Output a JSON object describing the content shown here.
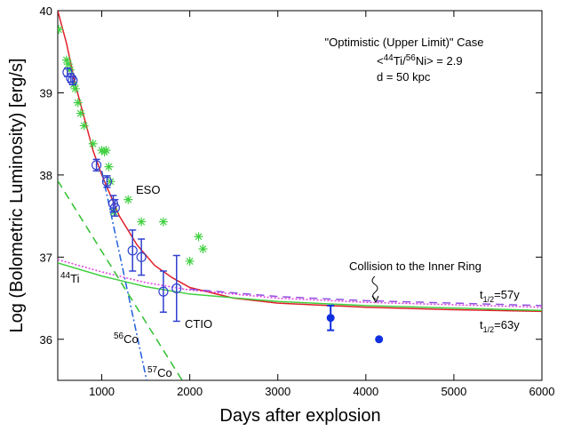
{
  "chart_data": {
    "type": "line",
    "xlabel": "Days after explosion",
    "ylabel": "Log (Bolometric Luminosity) [erg/s]",
    "xlim": [
      500,
      6000
    ],
    "ylim": [
      35.5,
      40
    ],
    "xticks": [
      1000,
      2000,
      3000,
      4000,
      5000,
      6000
    ],
    "yticks": [
      36,
      37,
      38,
      39,
      40
    ],
    "case": {
      "title": "\"Optimistic (Upper Limit)\" Case",
      "ratio": {
        "open": "<",
        "iso1": "44",
        "el1": "Ti/",
        "iso2": "56",
        "el2": "Ni> = 2.9"
      },
      "distance": "d = 50 kpc"
    },
    "annotations": {
      "eso": "ESO",
      "ctio": "CTIO",
      "collision": "Collision to the Inner Ring",
      "ti": {
        "iso": "44",
        "el": "Ti"
      },
      "co56": {
        "iso": "56",
        "el": "Co"
      },
      "co57": {
        "iso": "57",
        "el": "Co"
      },
      "t57": {
        "base": "t",
        "sub": "1/2",
        "text": "=57y"
      },
      "t63": {
        "base": "t",
        "sub": "1/2",
        "text": "=63y"
      }
    },
    "series": [
      {
        "marker": "line",
        "dash": "solid",
        "color": "#e0202a",
        "x": [
          500,
          600,
          700,
          800,
          900,
          1000,
          1200,
          1400,
          1600,
          1800,
          2000,
          2500,
          3000,
          4000,
          5000,
          6000
        ],
        "values": [
          40,
          39.6,
          39.1,
          38.7,
          38.3,
          38.0,
          37.5,
          37.15,
          36.9,
          36.75,
          36.63,
          36.5,
          36.44,
          36.39,
          36.36,
          36.34
        ]
      },
      {
        "marker": "line",
        "dash": "solid",
        "color": "#40d040",
        "x": [
          500,
          1000,
          1500,
          2000,
          3000,
          4000,
          5000,
          6000
        ],
        "values": [
          36.93,
          36.77,
          36.64,
          36.55,
          36.46,
          36.41,
          36.38,
          36.35
        ]
      },
      {
        "marker": "line",
        "dash": "dotted",
        "color": "#e040e0",
        "x": [
          500,
          1000,
          1500,
          2000,
          3000,
          4000,
          5000,
          6000
        ],
        "values": [
          36.97,
          36.82,
          36.69,
          36.6,
          36.5,
          36.45,
          36.42,
          36.39
        ]
      },
      {
        "marker": "line",
        "dash": "dashed",
        "color": "#9050e0",
        "x": [
          2000,
          3000,
          4000,
          5000,
          6000
        ],
        "values": [
          36.61,
          36.52,
          36.47,
          36.44,
          36.41
        ]
      },
      {
        "marker": "line",
        "dash": "dashdot",
        "color": "#2060e0",
        "x": [
          1000,
          1510
        ],
        "values": [
          38.05,
          35.5
        ]
      },
      {
        "marker": "line",
        "dash": "dashed",
        "color": "#30c030",
        "x": [
          500,
          1913
        ],
        "values": [
          37.93,
          35.5
        ]
      },
      {
        "marker": "star",
        "color": "#40d040",
        "x": [
          510,
          600,
          620,
          640,
          680,
          700,
          730,
          760,
          800,
          900,
          1000,
          1030,
          1050,
          1080,
          1100,
          1140,
          1300,
          1450,
          1700,
          2000,
          2100,
          2150
        ],
        "values": [
          39.77,
          39.4,
          39.35,
          39.28,
          39.1,
          39.05,
          38.88,
          38.75,
          38.6,
          38.38,
          38.3,
          38.28,
          38.3,
          38.1,
          37.92,
          37.55,
          37.7,
          37.43,
          37.43,
          36.95,
          37.25,
          37.1
        ]
      },
      {
        "marker": "circle",
        "color": "#3040d0",
        "x": [
          610,
          650,
          670,
          940,
          1060,
          1130,
          1150,
          1350,
          1450,
          1700,
          1850
        ],
        "values": [
          39.25,
          39.18,
          39.15,
          38.12,
          37.92,
          37.65,
          37.6,
          37.08,
          37.0,
          36.58,
          36.62
        ],
        "errors": [
          0.05,
          0.05,
          0.05,
          0.07,
          0.07,
          0.1,
          0.1,
          0.25,
          0.22,
          0.25,
          0.4
        ]
      },
      {
        "marker": "dot",
        "color": "#1030e0",
        "x": [
          3600,
          4150
        ],
        "values": [
          36.26,
          36.0
        ],
        "errors": [
          0.15,
          0
        ]
      }
    ]
  }
}
